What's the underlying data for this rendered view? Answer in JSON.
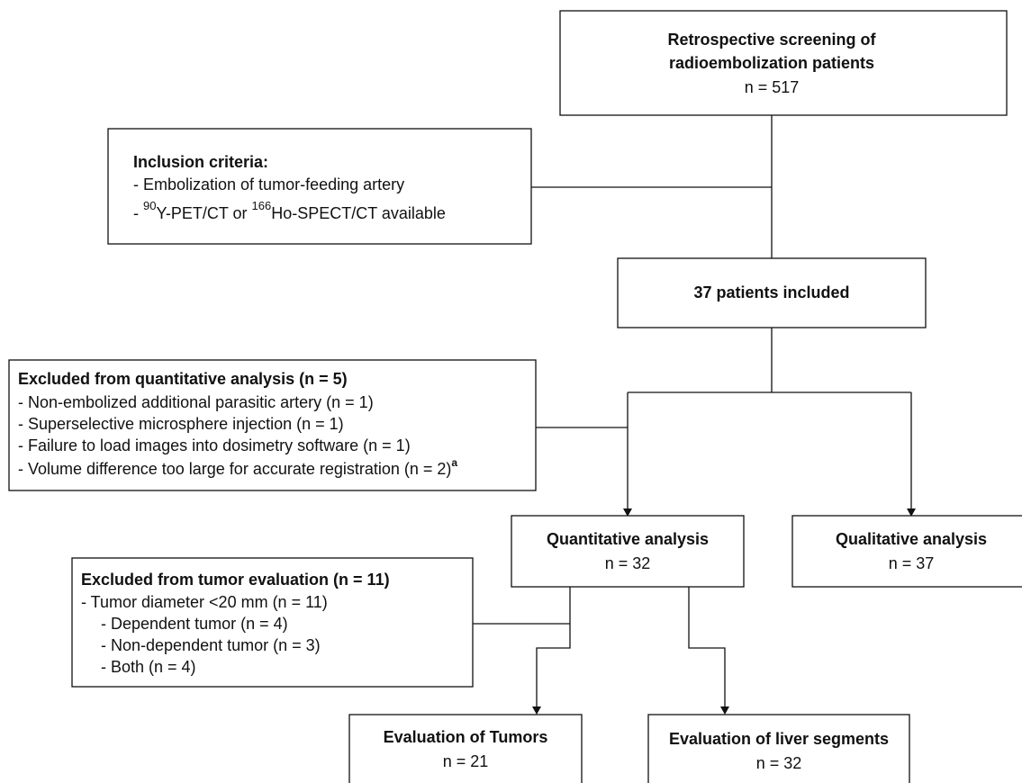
{
  "nodes": {
    "screening": {
      "lines": [
        "Retrospective screening of",
        "radioembolization patients"
      ],
      "n": "n = 517"
    },
    "inclusion": {
      "heading": "Inclusion criteria:",
      "item1": "- Embolization of tumor-feeding artery",
      "item2": {
        "prefix": "- ",
        "sup1": "90",
        "text1": "Y-PET/CT or ",
        "sup2": "166",
        "text2": "Ho-SPECT/CT available"
      }
    },
    "included": {
      "label": "37 patients included"
    },
    "excluded_quant": {
      "heading": "Excluded from quantitative analysis (n = 5)",
      "items": [
        "- Non-embolized additional parasitic artery (n = 1)",
        "- Superselective microsphere injection (n = 1)",
        "- Failure to load images into dosimetry software (n = 1)",
        "- Volume difference too large for accurate registration (n = 2)"
      ],
      "footnote": "a"
    },
    "quantitative": {
      "label": "Quantitative analysis",
      "n": "n = 32"
    },
    "qualitative": {
      "label": "Qualitative analysis",
      "n": "n = 37"
    },
    "excluded_tumor": {
      "heading": "Excluded from tumor evaluation (n = 11)",
      "item": "- Tumor diameter <20 mm (n = 11)",
      "subitems": [
        "- Dependent tumor (n = 4)",
        "- Non-dependent tumor (n = 3)",
        "- Both (n = 4)"
      ]
    },
    "tumors": {
      "label": "Evaluation of Tumors",
      "n": "n = 21"
    },
    "segments": {
      "label": "Evaluation of liver segments",
      "n": "n = 32"
    }
  }
}
